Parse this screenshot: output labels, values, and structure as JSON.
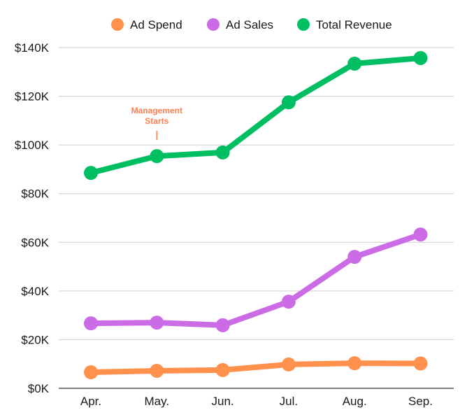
{
  "chart_data": {
    "type": "line",
    "title": "",
    "xlabel": "",
    "ylabel": "",
    "categories": [
      "Apr.",
      "May.",
      "Jun.",
      "Jul.",
      "Aug.",
      "Sep."
    ],
    "ylim": [
      0,
      140000
    ],
    "yticks": [
      0,
      20000,
      40000,
      60000,
      80000,
      100000,
      120000,
      140000
    ],
    "ytick_labels": [
      "$0K",
      "$20K",
      "$40K",
      "$60K",
      "$80K",
      "$100K",
      "$120K",
      "$140K"
    ],
    "grid": true,
    "legend_position": "top-center",
    "series": [
      {
        "name": "Ad Spend",
        "color": "#FF914D",
        "values": [
          6600,
          7200,
          7500,
          9800,
          10300,
          10200
        ]
      },
      {
        "name": "Ad Sales",
        "color": "#CB6CE6",
        "values": [
          26700,
          27000,
          25900,
          35600,
          54000,
          63200
        ]
      },
      {
        "name": "Total Revenue",
        "color": "#00BF63",
        "values": [
          88500,
          95400,
          96900,
          117500,
          133400,
          135700
        ]
      }
    ],
    "annotations": [
      {
        "text_lines": [
          "Management",
          "Starts"
        ],
        "category": "May.",
        "color": "#FF7F50"
      }
    ]
  }
}
